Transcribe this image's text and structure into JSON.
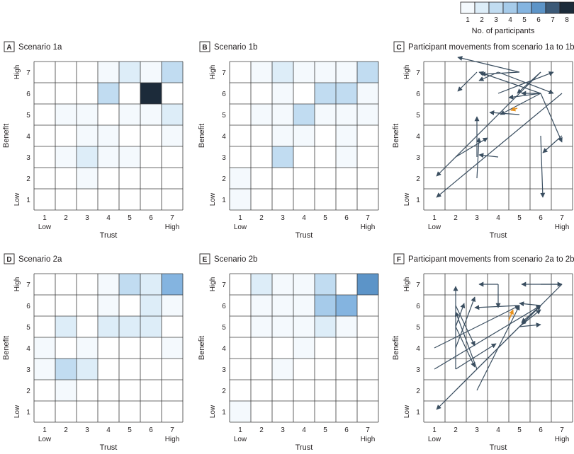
{
  "legend": {
    "ticks": [
      "1",
      "2",
      "3",
      "4",
      "5",
      "6",
      "7",
      "8"
    ],
    "title": "No. of participants",
    "colors": [
      "#f4f9fd",
      "#ddedf8",
      "#c1dcf1",
      "#a6cbea",
      "#84b4e0",
      "#5c94c8",
      "#3c5a78",
      "#1c2b3a"
    ]
  },
  "arrow_colors": {
    "default": "#3a4e60",
    "highlight": "#e8921d"
  },
  "grid_line_color": "#3b3b3b",
  "chart_data": [
    {
      "type": "heatmap",
      "letter": "A",
      "title": "Scenario 1a",
      "xlabel": "Trust",
      "ylabel": "Benefit",
      "x_ticks": [
        "1",
        "2",
        "3",
        "4",
        "5",
        "6",
        "7"
      ],
      "x_low": "Low",
      "x_high": "High",
      "y_ticks": [
        "1",
        "2",
        "3",
        "4",
        "5",
        "6",
        "7"
      ],
      "y_low": "Low",
      "y_high": "High",
      "cells": [
        {
          "x": 4,
          "y": 7,
          "v": 1
        },
        {
          "x": 5,
          "y": 7,
          "v": 2
        },
        {
          "x": 6,
          "y": 7,
          "v": 1
        },
        {
          "x": 7,
          "y": 7,
          "v": 3
        },
        {
          "x": 4,
          "y": 6,
          "v": 3
        },
        {
          "x": 6,
          "y": 6,
          "v": 8
        },
        {
          "x": 2,
          "y": 5,
          "v": 1
        },
        {
          "x": 3,
          "y": 5,
          "v": 1
        },
        {
          "x": 5,
          "y": 5,
          "v": 1
        },
        {
          "x": 6,
          "y": 5,
          "v": 1
        },
        {
          "x": 7,
          "y": 5,
          "v": 2
        },
        {
          "x": 3,
          "y": 4,
          "v": 1
        },
        {
          "x": 4,
          "y": 4,
          "v": 1
        },
        {
          "x": 7,
          "y": 4,
          "v": 1
        },
        {
          "x": 2,
          "y": 3,
          "v": 1
        },
        {
          "x": 3,
          "y": 3,
          "v": 2
        },
        {
          "x": 4,
          "y": 3,
          "v": 1
        },
        {
          "x": 5,
          "y": 3,
          "v": 1
        },
        {
          "x": 3,
          "y": 2,
          "v": 1
        }
      ]
    },
    {
      "type": "heatmap",
      "letter": "B",
      "title": "Scenario 1b",
      "xlabel": "Trust",
      "ylabel": "Benefit",
      "x_ticks": [
        "1",
        "2",
        "3",
        "4",
        "5",
        "6",
        "7"
      ],
      "x_low": "Low",
      "x_high": "High",
      "y_ticks": [
        "1",
        "2",
        "3",
        "4",
        "5",
        "6",
        "7"
      ],
      "y_low": "Low",
      "y_high": "High",
      "cells": [
        {
          "x": 2,
          "y": 7,
          "v": 1
        },
        {
          "x": 3,
          "y": 7,
          "v": 2
        },
        {
          "x": 4,
          "y": 7,
          "v": 1
        },
        {
          "x": 5,
          "y": 7,
          "v": 1
        },
        {
          "x": 6,
          "y": 7,
          "v": 1
        },
        {
          "x": 7,
          "y": 7,
          "v": 3
        },
        {
          "x": 3,
          "y": 6,
          "v": 1
        },
        {
          "x": 5,
          "y": 6,
          "v": 3
        },
        {
          "x": 6,
          "y": 6,
          "v": 3
        },
        {
          "x": 7,
          "y": 6,
          "v": 1
        },
        {
          "x": 2,
          "y": 5,
          "v": 1
        },
        {
          "x": 3,
          "y": 5,
          "v": 1
        },
        {
          "x": 4,
          "y": 5,
          "v": 3
        },
        {
          "x": 5,
          "y": 5,
          "v": 1
        },
        {
          "x": 6,
          "y": 5,
          "v": 1
        },
        {
          "x": 7,
          "y": 5,
          "v": 1
        },
        {
          "x": 3,
          "y": 4,
          "v": 1
        },
        {
          "x": 4,
          "y": 4,
          "v": 1
        },
        {
          "x": 6,
          "y": 4,
          "v": 1
        },
        {
          "x": 3,
          "y": 3,
          "v": 3
        },
        {
          "x": 6,
          "y": 3,
          "v": 1
        },
        {
          "x": 1,
          "y": 2,
          "v": 1
        },
        {
          "x": 1,
          "y": 1,
          "v": 1
        }
      ]
    },
    {
      "type": "arrows",
      "letter": "C",
      "title": "Participant movements from scenario 1a to 1b",
      "xlabel": "Trust",
      "ylabel": "Benefit",
      "x_ticks": [
        "1",
        "2",
        "3",
        "4",
        "5",
        "6",
        "7"
      ],
      "x_low": "Low",
      "x_high": "High",
      "y_ticks": [
        "1",
        "2",
        "3",
        "4",
        "5",
        "6",
        "7"
      ],
      "y_low": "Low",
      "y_high": "High",
      "arrows": [
        {
          "from": [
            6,
            6
          ],
          "to": [
            3.1,
            7
          ]
        },
        {
          "from": [
            5,
            7
          ],
          "to": [
            3.2,
            6.9
          ]
        },
        {
          "from": [
            4,
            7
          ],
          "to": [
            3.1,
            6.6
          ]
        },
        {
          "from": [
            6,
            7
          ],
          "to": [
            4.9,
            6
          ]
        },
        {
          "from": [
            6,
            6
          ],
          "to": [
            4.1,
            5
          ]
        },
        {
          "from": [
            4,
            6
          ],
          "to": [
            6.6,
            7
          ]
        },
        {
          "from": [
            4,
            7
          ],
          "to": [
            6.6,
            6
          ]
        },
        {
          "from": [
            6,
            6
          ],
          "to": [
            5.1,
            6
          ]
        },
        {
          "from": [
            3,
            7
          ],
          "to": [
            2.1,
            6.1
          ]
        },
        {
          "from": [
            5,
            7
          ],
          "to": [
            2.1,
            7.7
          ]
        },
        {
          "from": [
            6,
            7
          ],
          "to": [
            1.1,
            2.1
          ]
        },
        {
          "from": [
            7,
            6
          ],
          "to": [
            1.1,
            1.1
          ]
        },
        {
          "from": [
            7,
            4
          ],
          "to": [
            6.1,
            3.2
          ]
        },
        {
          "from": [
            6,
            4
          ],
          "to": [
            6.1,
            1.1
          ]
        },
        {
          "from": [
            5,
            5
          ],
          "to": [
            3.6,
            5.1
          ]
        },
        {
          "from": [
            3,
            3
          ],
          "to": [
            3,
            4.9
          ]
        },
        {
          "from": [
            3,
            2
          ],
          "to": [
            3.1,
            3.9
          ]
        },
        {
          "from": [
            4,
            3
          ],
          "to": [
            3.1,
            3.1
          ]
        },
        {
          "from": [
            2,
            3
          ],
          "to": [
            3.5,
            3.9
          ]
        },
        {
          "from": [
            6,
            6
          ],
          "to": [
            7,
            3.7
          ]
        },
        {
          "from": [
            6,
            6
          ],
          "to": [
            4.5,
            5.8
          ]
        },
        {
          "from": [
            4.9,
            5.3
          ],
          "to": [
            4.6,
            5.2
          ],
          "highlight": true
        }
      ]
    },
    {
      "type": "heatmap",
      "letter": "D",
      "title": "Scenario 2a",
      "xlabel": "Trust",
      "ylabel": "Benefit",
      "x_ticks": [
        "1",
        "2",
        "3",
        "4",
        "5",
        "6",
        "7"
      ],
      "x_low": "Low",
      "x_high": "High",
      "y_ticks": [
        "1",
        "2",
        "3",
        "4",
        "5",
        "6",
        "7"
      ],
      "y_low": "Low",
      "y_high": "High",
      "cells": [
        {
          "x": 4,
          "y": 7,
          "v": 1
        },
        {
          "x": 5,
          "y": 7,
          "v": 3
        },
        {
          "x": 6,
          "y": 7,
          "v": 2
        },
        {
          "x": 7,
          "y": 7,
          "v": 5
        },
        {
          "x": 4,
          "y": 6,
          "v": 1
        },
        {
          "x": 6,
          "y": 6,
          "v": 2
        },
        {
          "x": 7,
          "y": 6,
          "v": 1
        },
        {
          "x": 2,
          "y": 5,
          "v": 2
        },
        {
          "x": 4,
          "y": 5,
          "v": 2
        },
        {
          "x": 5,
          "y": 5,
          "v": 2
        },
        {
          "x": 6,
          "y": 5,
          "v": 2
        },
        {
          "x": 1,
          "y": 4,
          "v": 1
        },
        {
          "x": 3,
          "y": 4,
          "v": 1
        },
        {
          "x": 7,
          "y": 4,
          "v": 1
        },
        {
          "x": 1,
          "y": 3,
          "v": 1
        },
        {
          "x": 2,
          "y": 3,
          "v": 3
        },
        {
          "x": 3,
          "y": 3,
          "v": 2
        },
        {
          "x": 2,
          "y": 2,
          "v": 1
        }
      ]
    },
    {
      "type": "heatmap",
      "letter": "E",
      "title": "Scenario 2b",
      "xlabel": "Trust",
      "ylabel": "Benefit",
      "x_ticks": [
        "1",
        "2",
        "3",
        "4",
        "5",
        "6",
        "7"
      ],
      "x_low": "Low",
      "x_high": "High",
      "y_ticks": [
        "1",
        "2",
        "3",
        "4",
        "5",
        "6",
        "7"
      ],
      "y_low": "Low",
      "y_high": "High",
      "cells": [
        {
          "x": 2,
          "y": 7,
          "v": 2
        },
        {
          "x": 3,
          "y": 7,
          "v": 1
        },
        {
          "x": 4,
          "y": 7,
          "v": 1
        },
        {
          "x": 5,
          "y": 7,
          "v": 3
        },
        {
          "x": 7,
          "y": 7,
          "v": 6
        },
        {
          "x": 2,
          "y": 6,
          "v": 1
        },
        {
          "x": 3,
          "y": 6,
          "v": 1
        },
        {
          "x": 4,
          "y": 6,
          "v": 1
        },
        {
          "x": 5,
          "y": 6,
          "v": 4
        },
        {
          "x": 6,
          "y": 6,
          "v": 5
        },
        {
          "x": 2,
          "y": 5,
          "v": 1
        },
        {
          "x": 3,
          "y": 5,
          "v": 1
        },
        {
          "x": 4,
          "y": 5,
          "v": 1
        },
        {
          "x": 5,
          "y": 5,
          "v": 2
        },
        {
          "x": 6,
          "y": 5,
          "v": 1
        },
        {
          "x": 4,
          "y": 4,
          "v": 1
        },
        {
          "x": 3,
          "y": 3,
          "v": 1
        },
        {
          "x": 1,
          "y": 1,
          "v": 1
        }
      ]
    },
    {
      "type": "arrows",
      "letter": "F",
      "title": "Participant movements from scenario 2a to 2b",
      "xlabel": "Trust",
      "ylabel": "Benefit",
      "x_ticks": [
        "1",
        "2",
        "3",
        "4",
        "5",
        "6",
        "7"
      ],
      "x_low": "Low",
      "x_high": "High",
      "y_ticks": [
        "1",
        "2",
        "3",
        "4",
        "5",
        "6",
        "7"
      ],
      "y_low": "Low",
      "y_high": "High",
      "arrows": [
        {
          "from": [
            4,
            7
          ],
          "to": [
            3.1,
            7
          ]
        },
        {
          "from": [
            6,
            7
          ],
          "to": [
            7,
            7
          ]
        },
        {
          "from": [
            7,
            7
          ],
          "to": [
            5.1,
            7
          ]
        },
        {
          "from": [
            4,
            7
          ],
          "to": [
            4,
            5.9
          ]
        },
        {
          "from": [
            7,
            7
          ],
          "to": [
            5.1,
            5.1
          ]
        },
        {
          "from": [
            6,
            6
          ],
          "to": [
            5,
            6.1
          ]
        },
        {
          "from": [
            5,
            5
          ],
          "to": [
            6,
            5.8
          ]
        },
        {
          "from": [
            5,
            5
          ],
          "to": [
            6,
            5.1
          ]
        },
        {
          "from": [
            6,
            6
          ],
          "to": [
            5.1,
            5.2
          ]
        },
        {
          "from": [
            2,
            3
          ],
          "to": [
            2,
            6.9
          ]
        },
        {
          "from": [
            2,
            4
          ],
          "to": [
            2.9,
            6.4
          ]
        },
        {
          "from": [
            2,
            5
          ],
          "to": [
            2.4,
            6.1
          ]
        },
        {
          "from": [
            3,
            3
          ],
          "to": [
            2,
            5.7
          ]
        },
        {
          "from": [
            2,
            5
          ],
          "to": [
            2.9,
            3.1
          ]
        },
        {
          "from": [
            2,
            6
          ],
          "to": [
            2.9,
            4.1
          ]
        },
        {
          "from": [
            1,
            4
          ],
          "to": [
            5,
            6
          ]
        },
        {
          "from": [
            1,
            3
          ],
          "to": [
            6,
            6
          ]
        },
        {
          "from": [
            2,
            3
          ],
          "to": [
            3.9,
            4.2
          ]
        },
        {
          "from": [
            2,
            2
          ],
          "to": [
            6,
            6
          ]
        },
        {
          "from": [
            6,
            6
          ],
          "to": [
            1.1,
            1.1
          ]
        },
        {
          "from": [
            5,
            6
          ],
          "to": [
            2.9,
            5.9
          ]
        },
        {
          "from": [
            3,
            2
          ],
          "to": [
            5,
            6
          ]
        },
        {
          "from": [
            4.5,
            5.3
          ],
          "to": [
            4.7,
            5.8
          ],
          "highlight": true
        }
      ]
    }
  ]
}
